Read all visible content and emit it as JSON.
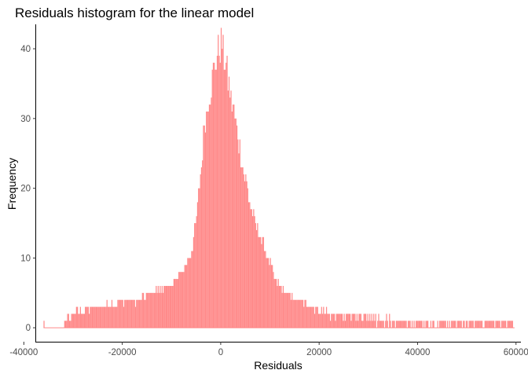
{
  "chart_data": {
    "type": "bar",
    "title": "Residuals histogram for the linear model",
    "xlabel": "Residuals",
    "ylabel": "Frequency",
    "xlim": [
      -37500,
      61000
    ],
    "ylim": [
      -2,
      43.5
    ],
    "x_ticks": [
      -40000,
      -20000,
      0,
      20000,
      40000,
      60000
    ],
    "x_tick_labels": [
      "-40000",
      "-20000",
      "0",
      "20000",
      "40000",
      "60000"
    ],
    "y_ticks": [
      0,
      10,
      20,
      30,
      40
    ],
    "y_tick_labels": [
      "0",
      "10",
      "20",
      "30",
      "40"
    ],
    "bar_color": "#ff8a8a",
    "grid": false,
    "legend": "none",
    "bin_width": 200,
    "bins_anchor_points": [
      [
        -36000,
        1
      ],
      [
        -35800,
        0
      ],
      [
        -32000,
        0
      ],
      [
        -31800,
        1
      ],
      [
        -30500,
        2
      ],
      [
        -25500,
        3
      ],
      [
        -17000,
        4
      ],
      [
        -14000,
        5
      ],
      [
        -10500,
        6
      ],
      [
        -8000,
        8
      ],
      [
        -7000,
        9
      ],
      [
        -6000,
        11
      ],
      [
        -5000,
        16
      ],
      [
        -4000,
        23
      ],
      [
        -3500,
        29
      ],
      [
        -2500,
        33
      ],
      [
        -1500,
        37
      ],
      [
        -800,
        39
      ],
      [
        -300,
        40
      ],
      [
        0,
        41
      ],
      [
        300,
        40
      ],
      [
        800,
        38
      ],
      [
        1500,
        35
      ],
      [
        2500,
        31
      ],
      [
        3500,
        27
      ],
      [
        4500,
        23
      ],
      [
        5500,
        19
      ],
      [
        6500,
        16
      ],
      [
        7500,
        14
      ],
      [
        8500,
        12
      ],
      [
        9500,
        10
      ],
      [
        11000,
        7
      ],
      [
        13000,
        5
      ],
      [
        15000,
        4
      ],
      [
        18000,
        3
      ],
      [
        23000,
        2
      ],
      [
        30000,
        2
      ],
      [
        37000,
        1
      ],
      [
        59500,
        1
      ]
    ]
  }
}
